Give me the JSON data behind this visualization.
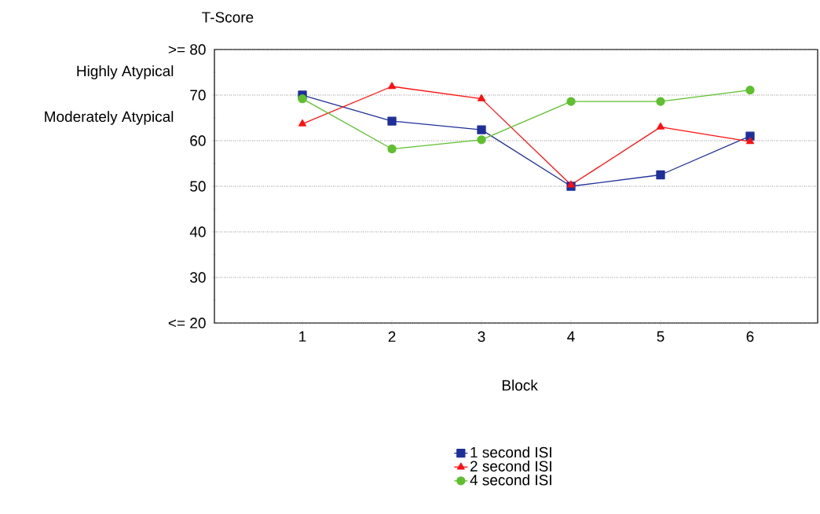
{
  "chart_data": {
    "type": "line",
    "xlabel": "Block",
    "ylabel": "T-Score",
    "categories": [
      "1",
      "2",
      "3",
      "4",
      "5",
      "6"
    ],
    "series": [
      {
        "name": "1 second ISI",
        "color": "#1f2f99",
        "marker": "square",
        "values": [
          70,
          64.3,
          62.4,
          50,
          52.5,
          61
        ]
      },
      {
        "name": "2 second ISI",
        "color": "#ff1010",
        "marker": "triangle",
        "values": [
          63.7,
          71.9,
          69.2,
          50.3,
          63,
          59.8
        ]
      },
      {
        "name": "4 second ISI",
        "color": "#5fbf2f",
        "marker": "circle",
        "values": [
          69.2,
          58.2,
          60.2,
          68.6,
          68.6,
          71.1
        ]
      }
    ],
    "ylim": [
      20,
      80
    ],
    "yticks": [
      {
        "value": 20,
        "label": "<= 20"
      },
      30,
      40,
      50,
      60,
      70,
      {
        "value": 80,
        "label": ">= 80"
      }
    ],
    "annotations": [
      "Highly Atypical",
      "Moderately Atypical"
    ],
    "grid": "y",
    "legend": "bottom",
    "line_style": "solid"
  }
}
